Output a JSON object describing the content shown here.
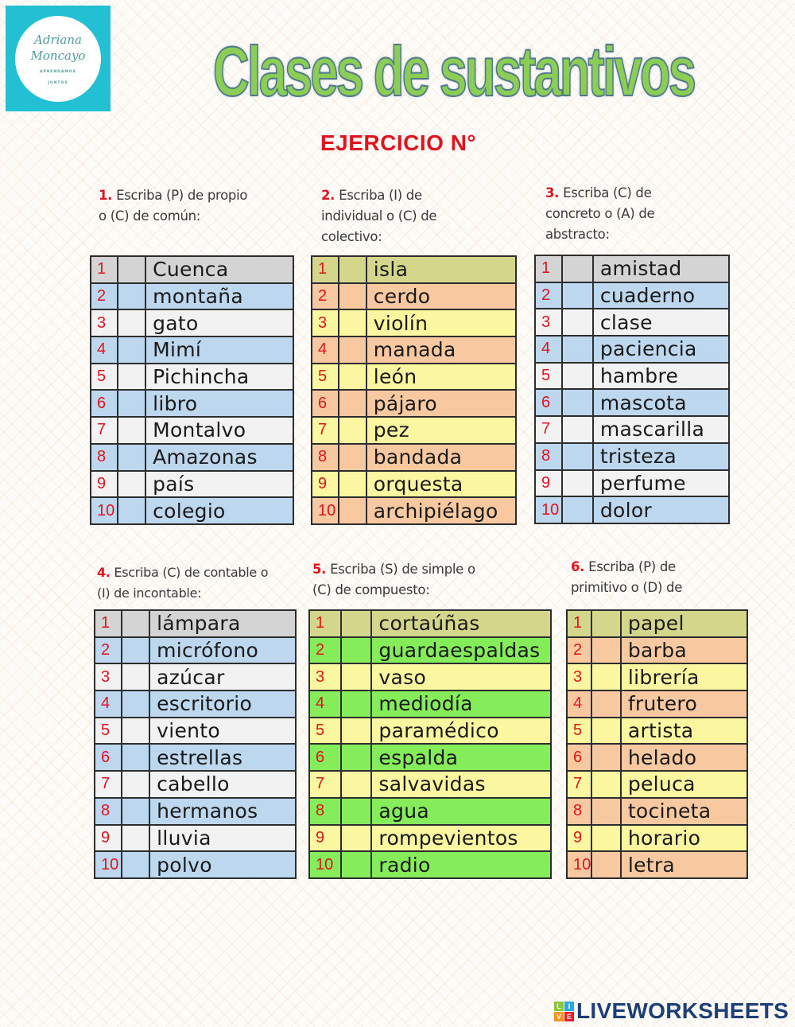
{
  "logo": {
    "name_line1": "Adriana",
    "name_line2": "Moncayo",
    "tagline_line1": "APRENDAMOS",
    "tagline_line2": "JUNTOS",
    "bg_color": "#22c0d2"
  },
  "title": "Clases de sustantivos",
  "exercise_heading": "EJERCICIO N°",
  "colors": {
    "accent_red": "#e0141c",
    "title_green": "#8ccd55",
    "gray_row": "#d4d4d4",
    "blue_row": "#bdd7ee",
    "white_row": "#f2f2f2",
    "olive_row": "#d4d68c",
    "salmon_row": "#f8c9a0",
    "yellow_row": "#fbf6a0",
    "green_row": "#85ec5a",
    "brand_blue": "#1d3f78"
  },
  "exercises": [
    {
      "number": "1.",
      "instruction": [
        " Escriba (P) de propio",
        "o (C) de común:"
      ],
      "rows": [
        {
          "n": "1",
          "word": "Cuenca",
          "answer": ""
        },
        {
          "n": "2",
          "word": "montaña",
          "answer": ""
        },
        {
          "n": "3",
          "word": "gato",
          "answer": ""
        },
        {
          "n": "4",
          "word": "Mimí",
          "answer": ""
        },
        {
          "n": "5",
          "word": "Pichincha",
          "answer": ""
        },
        {
          "n": "6",
          "word": "libro",
          "answer": ""
        },
        {
          "n": "7",
          "word": "Montalvo",
          "answer": ""
        },
        {
          "n": "8",
          "word": "Amazonas",
          "answer": ""
        },
        {
          "n": "9",
          "word": "país",
          "answer": ""
        },
        {
          "n": "10",
          "word": "colegio",
          "answer": ""
        }
      ]
    },
    {
      "number": "2.",
      "instruction": [
        " Escriba (I) de",
        "individual o (C) de",
        "colectivo:"
      ],
      "rows": [
        {
          "n": "1",
          "word": "isla",
          "answer": ""
        },
        {
          "n": "2",
          "word": "cerdo",
          "answer": ""
        },
        {
          "n": "3",
          "word": "violín",
          "answer": ""
        },
        {
          "n": "4",
          "word": "manada",
          "answer": ""
        },
        {
          "n": "5",
          "word": "león",
          "answer": ""
        },
        {
          "n": "6",
          "word": "pájaro",
          "answer": ""
        },
        {
          "n": "7",
          "word": "pez",
          "answer": ""
        },
        {
          "n": "8",
          "word": "bandada",
          "answer": ""
        },
        {
          "n": "9",
          "word": "orquesta",
          "answer": ""
        },
        {
          "n": "10",
          "word": "archipiélago",
          "answer": ""
        }
      ]
    },
    {
      "number": "3.",
      "instruction": [
        " Escriba (C) de",
        "concreto o (A) de",
        "abstracto:"
      ],
      "rows": [
        {
          "n": "1",
          "word": "amistad",
          "answer": ""
        },
        {
          "n": "2",
          "word": "cuaderno",
          "answer": ""
        },
        {
          "n": "3",
          "word": "clase",
          "answer": ""
        },
        {
          "n": "4",
          "word": "paciencia",
          "answer": ""
        },
        {
          "n": "5",
          "word": "hambre",
          "answer": ""
        },
        {
          "n": "6",
          "word": "mascota",
          "answer": ""
        },
        {
          "n": "7",
          "word": "mascarilla",
          "answer": ""
        },
        {
          "n": "8",
          "word": "tristeza",
          "answer": ""
        },
        {
          "n": "9",
          "word": "perfume",
          "answer": ""
        },
        {
          "n": "10",
          "word": "dolor",
          "answer": ""
        }
      ]
    },
    {
      "number": "4.",
      "instruction": [
        " Escriba (C) de contable o",
        "(I) de incontable:"
      ],
      "rows": [
        {
          "n": "1",
          "word": "lámpara",
          "answer": ""
        },
        {
          "n": "2",
          "word": "micrófono",
          "answer": ""
        },
        {
          "n": "3",
          "word": "azúcar",
          "answer": ""
        },
        {
          "n": "4",
          "word": "escritorio",
          "answer": ""
        },
        {
          "n": "5",
          "word": "viento",
          "answer": ""
        },
        {
          "n": "6",
          "word": "estrellas",
          "answer": ""
        },
        {
          "n": "7",
          "word": "cabello",
          "answer": ""
        },
        {
          "n": "8",
          "word": "hermanos",
          "answer": ""
        },
        {
          "n": "9",
          "word": "lluvia",
          "answer": ""
        },
        {
          "n": "10",
          "word": "polvo",
          "answer": ""
        }
      ]
    },
    {
      "number": "5.",
      "instruction": [
        " Escriba (S) de simple o",
        "(C) de compuesto:"
      ],
      "rows": [
        {
          "n": "1",
          "word": "cortaúñas",
          "answer": ""
        },
        {
          "n": "2",
          "word": "guardaespaldas",
          "answer": ""
        },
        {
          "n": "3",
          "word": "vaso",
          "answer": ""
        },
        {
          "n": "4",
          "word": "mediodía",
          "answer": ""
        },
        {
          "n": "5",
          "word": "paramédico",
          "answer": ""
        },
        {
          "n": "6",
          "word": "espalda",
          "answer": ""
        },
        {
          "n": "7",
          "word": "salvavidas",
          "answer": ""
        },
        {
          "n": "8",
          "word": "agua",
          "answer": ""
        },
        {
          "n": "9",
          "word": "rompevientos",
          "answer": ""
        },
        {
          "n": "10",
          "word": "radio",
          "answer": ""
        }
      ]
    },
    {
      "number": "6.",
      "instruction": [
        " Escriba (P) de",
        "primitivo o (D) de"
      ],
      "rows": [
        {
          "n": "1",
          "word": "papel",
          "answer": ""
        },
        {
          "n": "2",
          "word": "barba",
          "answer": ""
        },
        {
          "n": "3",
          "word": "librería",
          "answer": ""
        },
        {
          "n": "4",
          "word": "frutero",
          "answer": ""
        },
        {
          "n": "5",
          "word": "artista",
          "answer": ""
        },
        {
          "n": "6",
          "word": "helado",
          "answer": ""
        },
        {
          "n": "7",
          "word": "peluca",
          "answer": ""
        },
        {
          "n": "8",
          "word": "tocineta",
          "answer": ""
        },
        {
          "n": "9",
          "word": "horario",
          "answer": ""
        },
        {
          "n": "10",
          "word": "letra",
          "answer": ""
        }
      ]
    }
  ],
  "brand": {
    "blocks": [
      "L",
      "I",
      "V",
      "E"
    ],
    "block_colors": [
      "#8cc63f",
      "#29abe2",
      "#f7931e",
      "#ed1c24"
    ],
    "name": "LIVEWORKSHEETS"
  }
}
